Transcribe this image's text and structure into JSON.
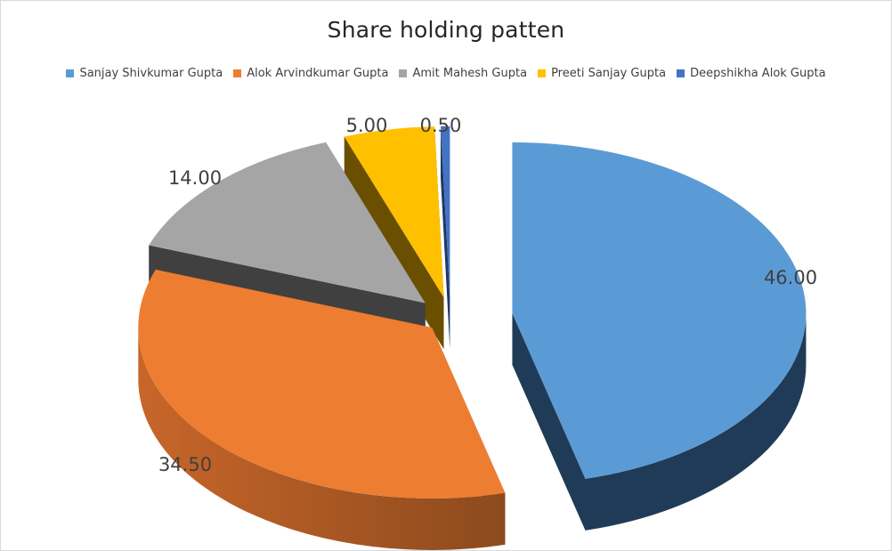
{
  "chart_data": {
    "type": "pie",
    "title": "Share holding patten",
    "legend_position": "top",
    "style": "3d-exploded",
    "categories": [
      "Sanjay Shivkumar Gupta",
      "Alok Arvindkumar Gupta",
      "Amit Mahesh Gupta",
      "Preeti Sanjay Gupta",
      "Deepshikha Alok Gupta"
    ],
    "values": [
      46.0,
      34.5,
      14.0,
      5.0,
      0.5
    ],
    "labels": [
      "46.00",
      "34.50",
      "14.00",
      "5.00",
      "0.50"
    ],
    "colors": [
      "#5b9bd5",
      "#ed7d31",
      "#a5a5a5",
      "#ffc000",
      "#4472c4"
    ],
    "side_colors": [
      "#203b57",
      "#8c4a1d",
      "#404040",
      "#6b4f00",
      "#1f3864"
    ]
  }
}
